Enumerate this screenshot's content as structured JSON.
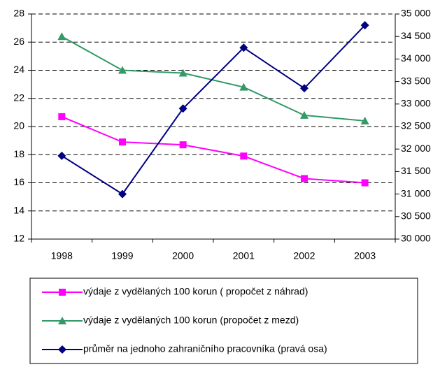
{
  "chart_data": {
    "type": "line",
    "categories": [
      "1998",
      "1999",
      "2000",
      "2001",
      "2002",
      "2003"
    ],
    "series": [
      {
        "name": "výdaje z vydělaných 100 korun ( propočet z náhrad)",
        "color": "#ff00ff",
        "marker": "square",
        "values": [
          20.7,
          18.9,
          18.7,
          17.9,
          16.3,
          16.0
        ]
      },
      {
        "name": "výdaje z vydělaných 100 korun (propočet z mezd)",
        "color": "#339966",
        "marker": "triangle",
        "values": [
          26.4,
          24.0,
          23.8,
          22.8,
          20.8,
          20.4
        ]
      },
      {
        "name": "průměr na jednoho zahraničního pracovníka (pravá osa)",
        "color": "#000080",
        "marker": "diamond",
        "axis": "y2",
        "values": [
          31850,
          31000,
          32900,
          34250,
          33350,
          34750
        ]
      }
    ],
    "ylim": [
      12,
      28
    ],
    "yticks": [
      12,
      14,
      16,
      18,
      20,
      22,
      24,
      26,
      28
    ],
    "y2lim": [
      30000,
      35000
    ],
    "y2ticks": [
      {
        "value": 30000,
        "label": "30 000"
      },
      {
        "value": 30500,
        "label": "30 500"
      },
      {
        "value": 31000,
        "label": "31 000"
      },
      {
        "value": 31500,
        "label": "31 500"
      },
      {
        "value": 32000,
        "label": "32 000"
      },
      {
        "value": 32500,
        "label": "32 500"
      },
      {
        "value": 33000,
        "label": "33 000"
      },
      {
        "value": 33500,
        "label": "33 500"
      },
      {
        "value": 34000,
        "label": "34 000"
      },
      {
        "value": 34500,
        "label": "34 500"
      },
      {
        "value": 35000,
        "label": "35 000"
      }
    ],
    "grid": true,
    "legend": "bottom"
  }
}
